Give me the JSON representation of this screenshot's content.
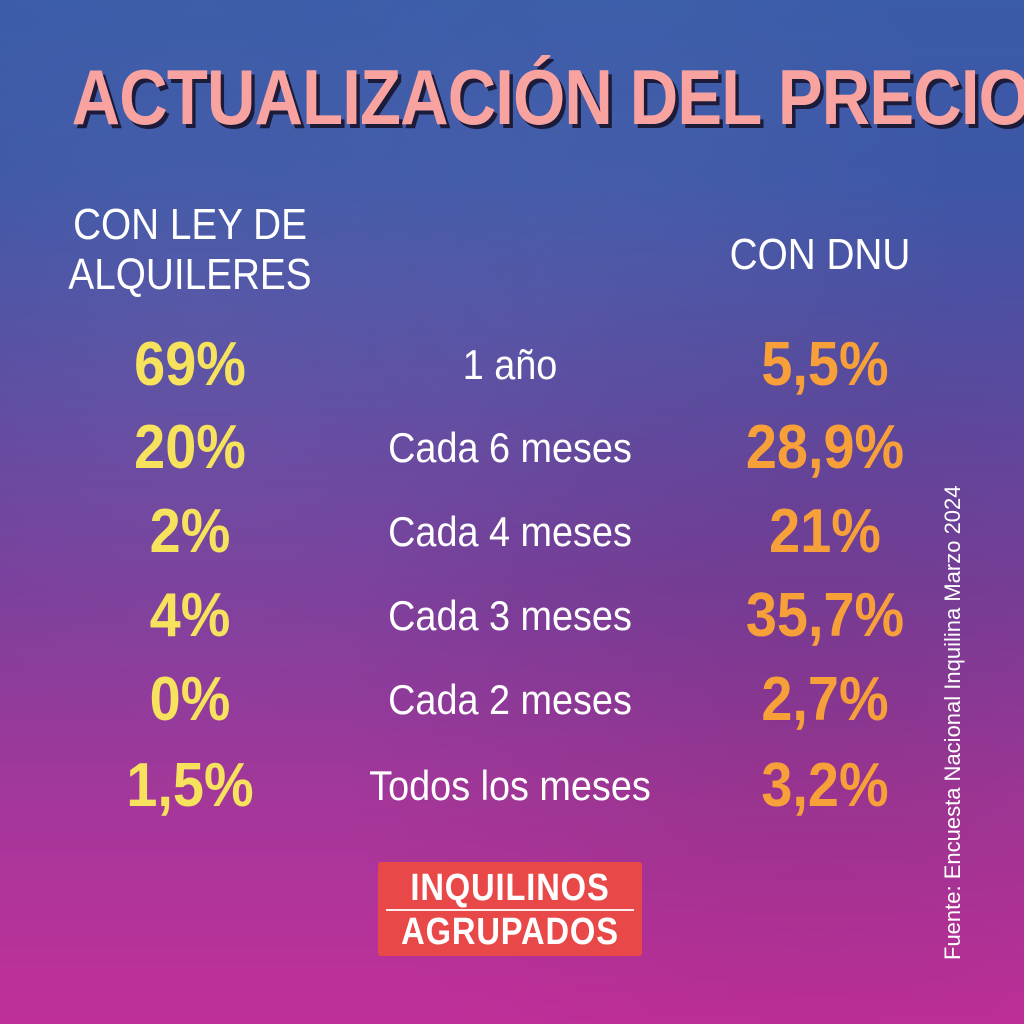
{
  "title": "ACTUALIZACIÓN DEL PRECIO",
  "headers": {
    "left_line1": "CON LEY DE",
    "left_line2": "ALQUILERES",
    "right": "CON DNU"
  },
  "rows": [
    {
      "left": "69%",
      "label": "1 año",
      "right": "5,5%"
    },
    {
      "left": "20%",
      "label": "Cada 6 meses",
      "right": "28,9%"
    },
    {
      "left": "2%",
      "label": "Cada 4 meses",
      "right": "21%"
    },
    {
      "left": "4%",
      "label": "Cada 3 meses",
      "right": "35,7%"
    },
    {
      "left": "0%",
      "label": "Cada 2 meses",
      "right": "2,7%"
    },
    {
      "left": "1,5%",
      "label": "Todos los meses",
      "right": "3,2%"
    }
  ],
  "source": "Fuente: Encuesta Nacional Inquilina Marzo 2024",
  "logo": {
    "line1": "INQUILINOS",
    "line2": "AGRUPADOS"
  },
  "colors": {
    "title": "#f8a3a0",
    "left_values": "#f6e25d",
    "right_values": "#f7a03a",
    "logo_bg": "#e84848"
  }
}
